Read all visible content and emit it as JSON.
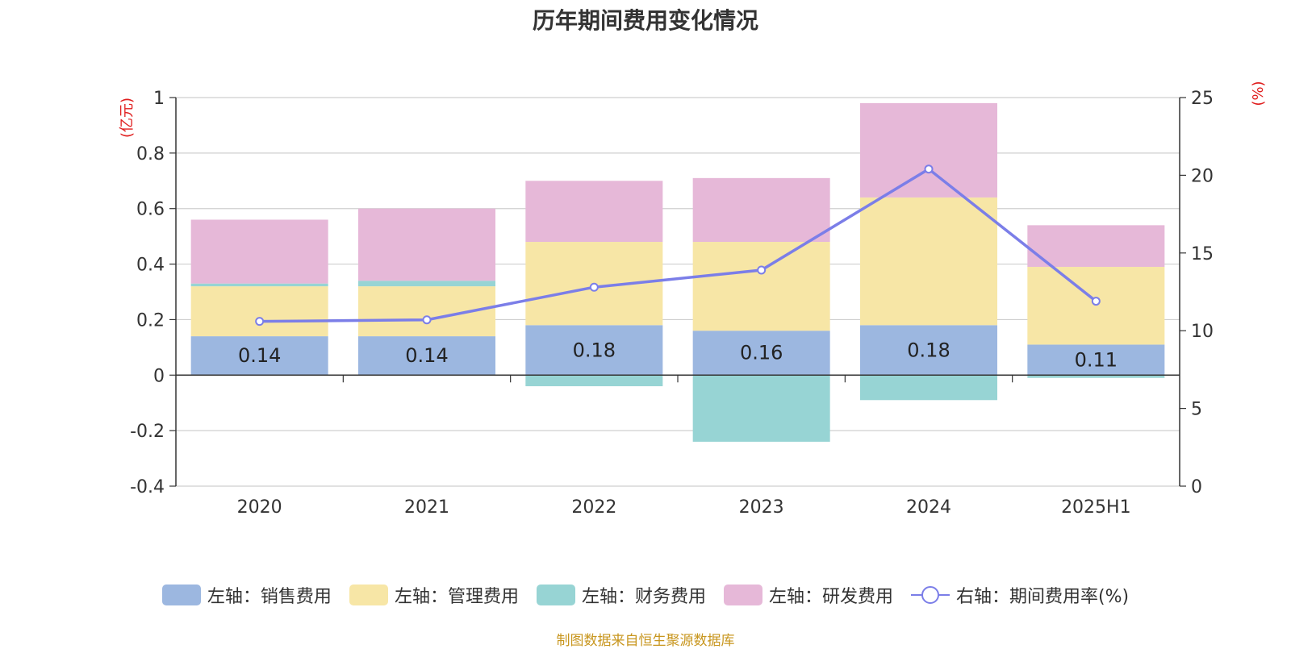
{
  "title": "历年期间费用变化情况",
  "source_note": "制图数据来自恒生聚源数据库",
  "legend": [
    {
      "label": "左轴：销售费用",
      "color": "#9cb7e0",
      "kind": "bar"
    },
    {
      "label": "左轴：管理费用",
      "color": "#f7e6a6",
      "kind": "bar"
    },
    {
      "label": "左轴：财务费用",
      "color": "#97d4d4",
      "kind": "bar"
    },
    {
      "label": "左轴：研发费用",
      "color": "#e6b8d8",
      "kind": "bar"
    },
    {
      "label": "右轴：期间费用率(%)",
      "color": "#7b7ee8",
      "kind": "line"
    }
  ],
  "chart_data": {
    "type": "bar",
    "stacked": true,
    "title": "历年期间费用变化情况",
    "categories": [
      "2020",
      "2021",
      "2022",
      "2023",
      "2024",
      "2025H1"
    ],
    "left_axis": {
      "unit_label": "(亿元)",
      "ylim": [
        -0.4,
        1
      ],
      "ticks": [
        1,
        0.8,
        0.6,
        0.4,
        0.2,
        0,
        -0.2,
        -0.4
      ],
      "tick_labels": [
        "1",
        "0.8",
        "0.6",
        "0.4",
        "0.2",
        "0",
        "-0.2",
        "-0.4"
      ]
    },
    "right_axis": {
      "unit_label": "(%)",
      "ylim": [
        0,
        25
      ],
      "ticks": [
        25,
        20,
        15,
        10,
        5,
        0
      ],
      "tick_labels": [
        "25",
        "20",
        "15",
        "10",
        "5",
        "0"
      ]
    },
    "grid": true,
    "legend_position": "bottom",
    "series": [
      {
        "name": "左轴：销售费用",
        "axis": "left",
        "color": "#9cb7e0",
        "values": [
          0.14,
          0.14,
          0.18,
          0.16,
          0.18,
          0.11
        ],
        "data_labels": [
          "0.14",
          "0.14",
          "0.18",
          "0.16",
          "0.18",
          "0.11"
        ]
      },
      {
        "name": "左轴：管理费用",
        "axis": "left",
        "color": "#f7e6a6",
        "values": [
          0.18,
          0.18,
          0.3,
          0.32,
          0.46,
          0.28
        ]
      },
      {
        "name": "左轴：财务费用",
        "axis": "left",
        "color": "#97d4d4",
        "values": [
          0.01,
          0.02,
          -0.04,
          -0.24,
          -0.09,
          -0.01
        ]
      },
      {
        "name": "左轴：研发费用",
        "axis": "left",
        "color": "#e6b8d8",
        "values": [
          0.23,
          0.26,
          0.22,
          0.23,
          0.34,
          0.15
        ]
      },
      {
        "name": "右轴：期间费用率(%)",
        "axis": "right",
        "type": "line",
        "color": "#7b7ee8",
        "values": [
          10.6,
          10.7,
          12.8,
          13.9,
          20.4,
          11.9
        ]
      }
    ]
  }
}
